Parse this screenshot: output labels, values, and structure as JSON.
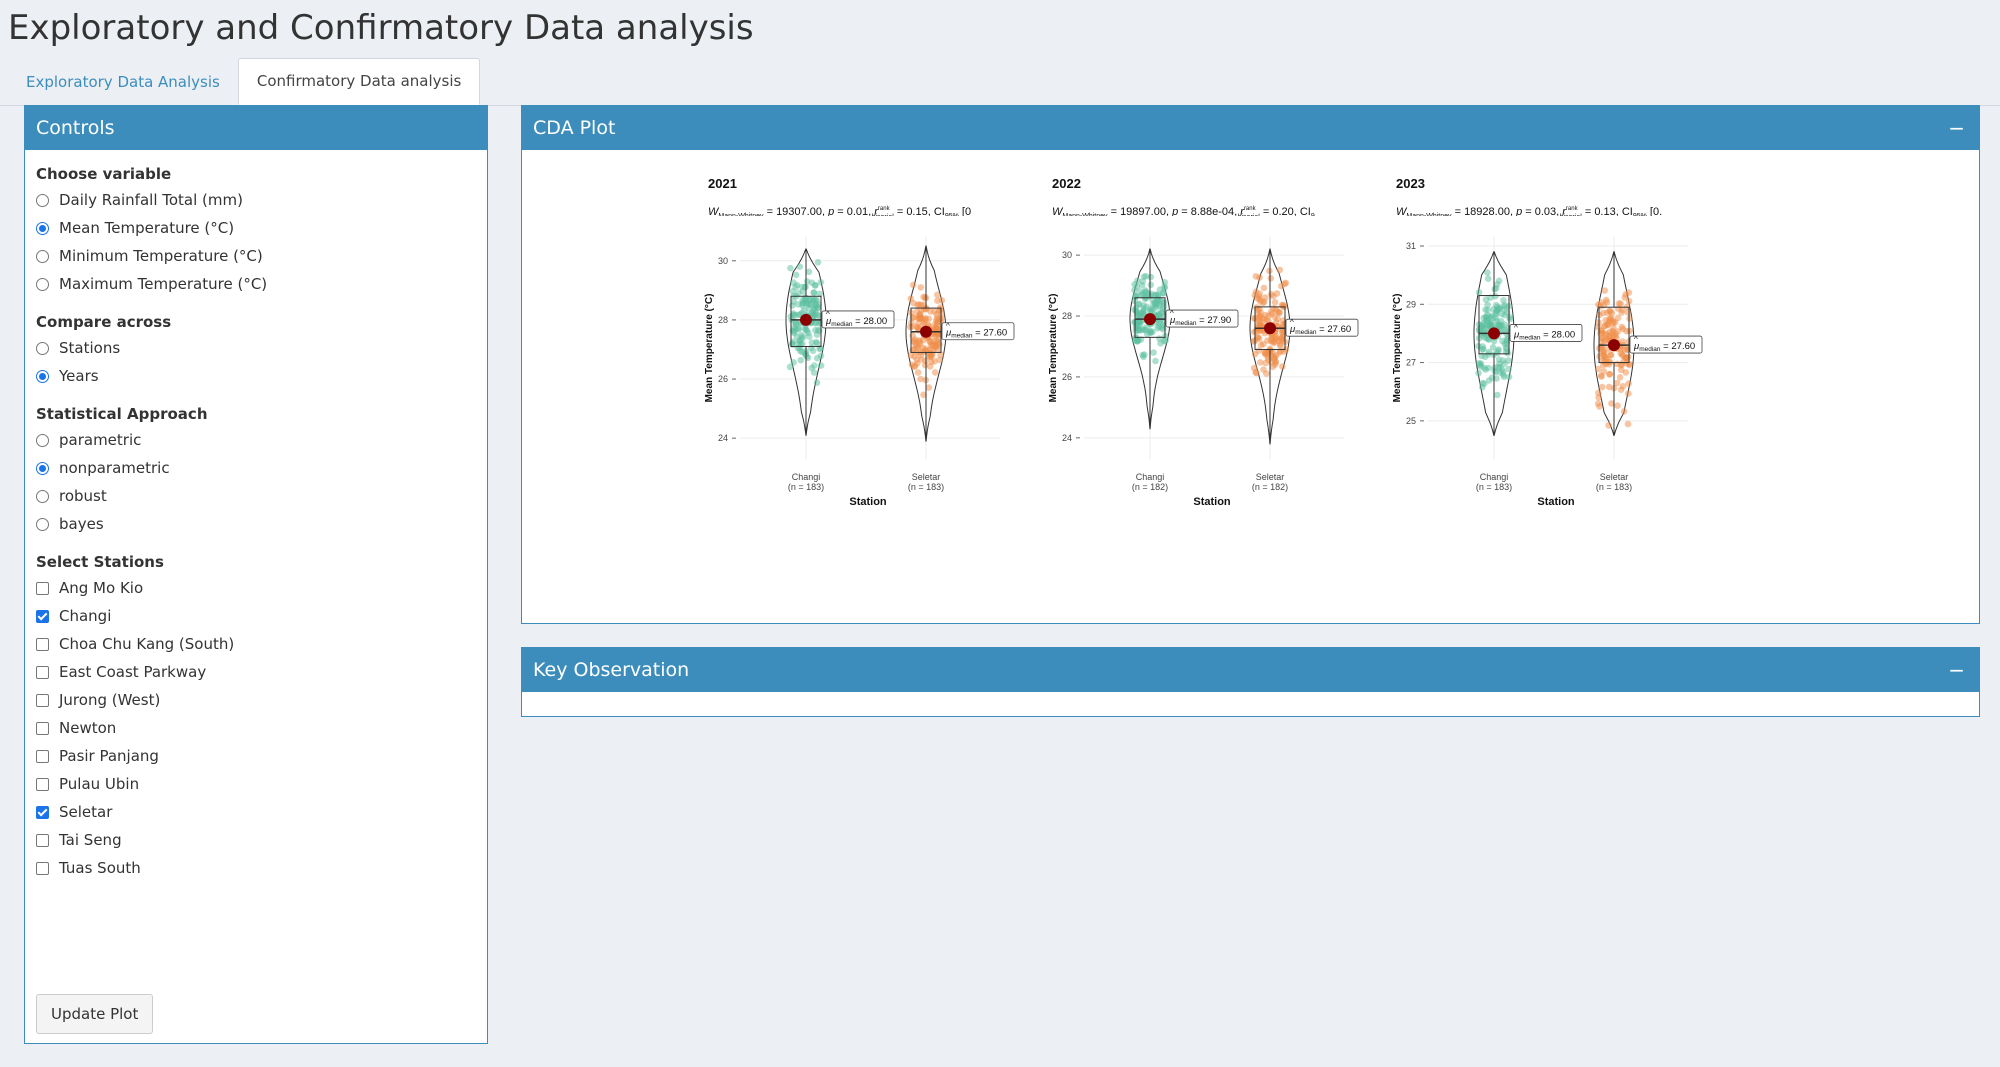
{
  "app_title": "Exploratory and Confirmatory Data analysis",
  "tabs": [
    {
      "label": "Exploratory Data Analysis",
      "active": false
    },
    {
      "label": "Confirmatory Data analysis",
      "active": true
    }
  ],
  "controls": {
    "title": "Controls",
    "choose_variable": {
      "label": "Choose variable",
      "options": [
        "Daily Rainfall Total (mm)",
        "Mean Temperature (°C)",
        "Minimum Temperature (°C)",
        "Maximum Temperature (°C)"
      ],
      "selected": 1
    },
    "compare_across": {
      "label": "Compare across",
      "options": [
        "Stations",
        "Years"
      ],
      "selected": 1
    },
    "approach": {
      "label": "Statistical Approach",
      "options": [
        "parametric",
        "nonparametric",
        "robust",
        "bayes"
      ],
      "selected": 1
    },
    "stations": {
      "label": "Select Stations",
      "options": [
        "Ang Mo Kio",
        "Changi",
        "Choa Chu Kang (South)",
        "East Coast Parkway",
        "Jurong (West)",
        "Newton",
        "Pasir Panjang",
        "Pulau Ubin",
        "Seletar",
        "Tai Seng",
        "Tuas South"
      ],
      "checked": [
        false,
        true,
        false,
        false,
        false,
        false,
        false,
        false,
        true,
        false,
        false
      ]
    },
    "update_button": "Update Plot"
  },
  "cda_box": {
    "title": "CDA Plot",
    "collapse_icon": "−"
  },
  "key_box": {
    "title": "Key Observation",
    "collapse_icon": "−"
  },
  "chart_data": [
    {
      "type": "violin-box-scatter",
      "title": "2021",
      "subtitle": "W Mann-Whitney = 19307.00, p = 0.01, r rank biserial = 0.15, CI95% [0",
      "subtitle_parts": {
        "stat_name": "W",
        "stat_sub": "Mann-Whitney",
        "stat_val": "= 19307.00,",
        "p": "= 0.01,",
        "effect_sub": "biserial",
        "effect_sup": "rank",
        "effect_val": "= 0.15,",
        "ci": "CI",
        "ci_sub": "95%",
        "ci_tail": "[0"
      },
      "xlabel": "Station",
      "ylabel": "Mean Temperature (°C)",
      "ylim": [
        23.6,
        30.5
      ],
      "yticks": [
        24,
        26,
        28,
        30
      ],
      "categories": [
        "Changi",
        "Seletar"
      ],
      "n": [
        "(n = 183)",
        "(n = 183)"
      ],
      "colors": [
        "#5cc0a0",
        "#f08c46"
      ],
      "median_labels": [
        "= 28.00",
        "= 27.60"
      ],
      "stats": [
        {
          "min": 24.1,
          "q1": 27.1,
          "median": 28.0,
          "q3": 28.8,
          "max": 30.4
        },
        {
          "min": 23.9,
          "q1": 26.9,
          "median": 27.6,
          "q3": 28.4,
          "max": 30.5
        }
      ]
    },
    {
      "type": "violin-box-scatter",
      "title": "2022",
      "subtitle": "W Mann-Whitney = 19897.00, p = 8.88e-04, r rank biserial = 0.20, CI9",
      "subtitle_parts": {
        "stat_name": "W",
        "stat_sub": "Mann-Whitney",
        "stat_val": "= 19897.00,",
        "p": "= 8.88e-04,",
        "effect_sub": "biserial",
        "effect_sup": "rank",
        "effect_val": "= 0.20,",
        "ci": "CI",
        "ci_sub": "9",
        "ci_tail": ""
      },
      "xlabel": "Station",
      "ylabel": "Mean Temperature (°C)",
      "ylim": [
        23.6,
        30.3
      ],
      "yticks": [
        24,
        26,
        28,
        30
      ],
      "categories": [
        "Changi",
        "Seletar"
      ],
      "n": [
        "(n = 182)",
        "(n = 182)"
      ],
      "colors": [
        "#5cc0a0",
        "#f08c46"
      ],
      "median_labels": [
        "= 27.90",
        "= 27.60"
      ],
      "stats": [
        {
          "min": 24.3,
          "q1": 27.3,
          "median": 27.9,
          "q3": 28.6,
          "max": 30.2
        },
        {
          "min": 23.8,
          "q1": 26.9,
          "median": 27.6,
          "q3": 28.3,
          "max": 30.2
        }
      ]
    },
    {
      "type": "violin-box-scatter",
      "title": "2023",
      "subtitle": "W Mann-Whitney = 18928.00, p = 0.03, r rank biserial = 0.13, CI95% [0.",
      "subtitle_parts": {
        "stat_name": "W",
        "stat_sub": "Mann-Whitney",
        "stat_val": "= 18928.00,",
        "p": "= 0.03,",
        "effect_sub": "biserial",
        "effect_sup": "rank",
        "effect_val": "= 0.13,",
        "ci": "CI",
        "ci_sub": "95%",
        "ci_tail": "[0."
      },
      "xlabel": "Station",
      "ylabel": "Mean Temperature (°C)",
      "ylim": [
        24.0,
        31.0
      ],
      "yticks": [
        25,
        27,
        29,
        31
      ],
      "categories": [
        "Changi",
        "Seletar"
      ],
      "n": [
        "(n = 183)",
        "(n = 183)"
      ],
      "colors": [
        "#5cc0a0",
        "#f08c46"
      ],
      "median_labels": [
        "= 28.00",
        "= 27.60"
      ],
      "stats": [
        {
          "min": 24.5,
          "q1": 27.3,
          "median": 28.0,
          "q3": 29.3,
          "max": 30.8
        },
        {
          "min": 24.5,
          "q1": 27.0,
          "median": 27.6,
          "q3": 28.9,
          "max": 30.8
        }
      ]
    }
  ]
}
